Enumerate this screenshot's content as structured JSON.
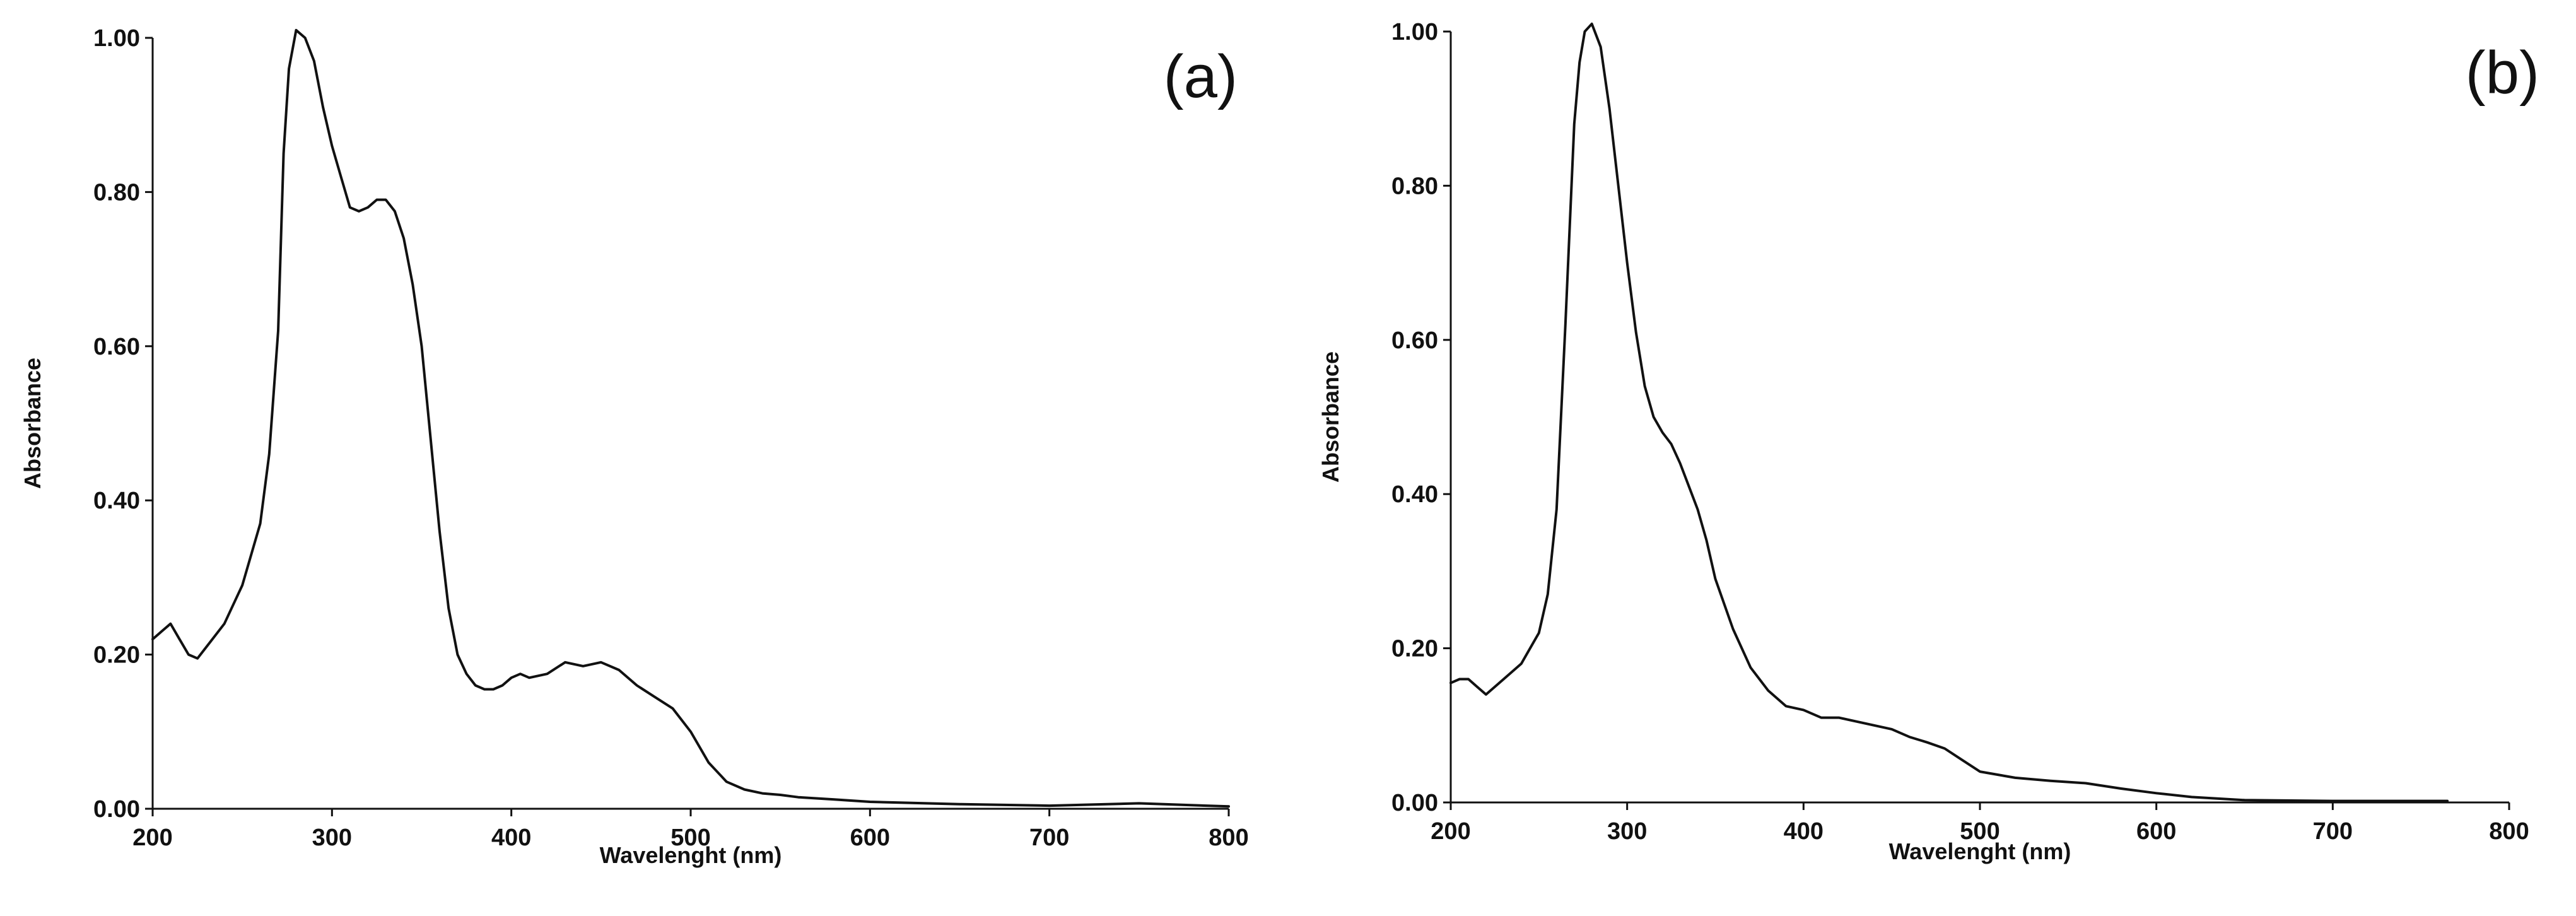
{
  "chart_data": [
    {
      "type": "line",
      "panel_label": "(a)",
      "xlabel": "Wavelenght (nm)",
      "ylabel": "Absorbance",
      "xlim": [
        200,
        800
      ],
      "ylim": [
        0,
        1.0
      ],
      "xticks": [
        "200",
        "300",
        "400",
        "500",
        "600",
        "700",
        "800"
      ],
      "yticks": [
        "0.00",
        "0.20",
        "0.40",
        "0.60",
        "0.80",
        "1.00"
      ],
      "grid": false,
      "legend": "none",
      "series": [
        {
          "x": [
            200,
            205,
            210,
            215,
            220,
            225,
            230,
            240,
            250,
            260,
            265,
            270,
            273,
            276,
            280,
            285,
            290,
            295,
            300,
            305,
            310,
            315,
            320,
            325,
            330,
            335,
            340,
            345,
            350,
            355,
            360,
            365,
            370,
            375,
            380,
            385,
            390,
            395,
            400,
            405,
            410,
            420,
            430,
            440,
            450,
            460,
            470,
            480,
            490,
            500,
            510,
            520,
            530,
            540,
            550,
            560,
            580,
            600,
            650,
            700,
            750,
            800
          ],
          "y": [
            0.22,
            0.23,
            0.24,
            0.22,
            0.2,
            0.195,
            0.21,
            0.24,
            0.29,
            0.37,
            0.46,
            0.62,
            0.85,
            0.96,
            1.01,
            1.0,
            0.97,
            0.91,
            0.86,
            0.82,
            0.78,
            0.775,
            0.78,
            0.79,
            0.79,
            0.775,
            0.74,
            0.68,
            0.6,
            0.48,
            0.36,
            0.26,
            0.2,
            0.175,
            0.16,
            0.155,
            0.155,
            0.16,
            0.17,
            0.175,
            0.17,
            0.175,
            0.19,
            0.185,
            0.19,
            0.18,
            0.16,
            0.145,
            0.13,
            0.1,
            0.06,
            0.035,
            0.025,
            0.02,
            0.018,
            0.015,
            0.012,
            0.009,
            0.006,
            0.004,
            0.007,
            0.003
          ]
        }
      ]
    },
    {
      "type": "line",
      "panel_label": "(b)",
      "xlabel": "Wavelenght (nm)",
      "ylabel": "Absorbance",
      "xlim": [
        200,
        800
      ],
      "ylim": [
        0,
        1.0
      ],
      "xticks": [
        "200",
        "300",
        "400",
        "500",
        "600",
        "700",
        "800"
      ],
      "yticks": [
        "0.00",
        "0.20",
        "0.40",
        "0.60",
        "0.80",
        "1.00"
      ],
      "grid": false,
      "legend": "none",
      "series": [
        {
          "x": [
            200,
            205,
            210,
            215,
            220,
            230,
            240,
            250,
            255,
            260,
            265,
            270,
            273,
            276,
            280,
            285,
            290,
            295,
            300,
            305,
            310,
            315,
            320,
            325,
            330,
            335,
            340,
            345,
            350,
            360,
            370,
            380,
            390,
            400,
            410,
            420,
            430,
            440,
            450,
            460,
            470,
            480,
            490,
            500,
            520,
            540,
            560,
            580,
            600,
            620,
            650,
            700,
            765
          ],
          "y": [
            0.155,
            0.16,
            0.16,
            0.15,
            0.14,
            0.16,
            0.18,
            0.22,
            0.27,
            0.38,
            0.62,
            0.88,
            0.96,
            1.0,
            1.01,
            0.98,
            0.9,
            0.8,
            0.7,
            0.61,
            0.54,
            0.5,
            0.48,
            0.465,
            0.44,
            0.41,
            0.38,
            0.34,
            0.29,
            0.225,
            0.175,
            0.145,
            0.125,
            0.12,
            0.11,
            0.11,
            0.105,
            0.1,
            0.095,
            0.085,
            0.078,
            0.07,
            0.055,
            0.04,
            0.032,
            0.028,
            0.025,
            0.018,
            0.012,
            0.007,
            0.003,
            0.002,
            0.002
          ]
        }
      ]
    }
  ]
}
